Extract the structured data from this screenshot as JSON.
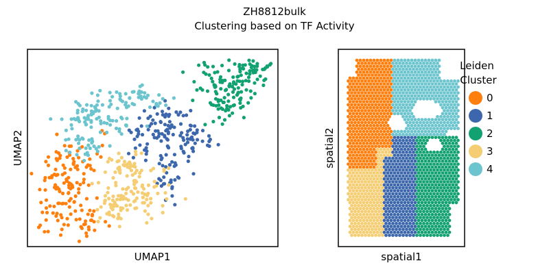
{
  "figure": {
    "suptitle": "ZH8812bulk",
    "title": "Clustering based on TF Activity"
  },
  "legend": {
    "title_line1": "Leiden",
    "title_line2": "Cluster",
    "placement": "right of spatial panel",
    "items": [
      {
        "label": "0",
        "color": "#ff7f0e"
      },
      {
        "label": "1",
        "color": "#3c67ad"
      },
      {
        "label": "2",
        "color": "#12a170"
      },
      {
        "label": "3",
        "color": "#f5cd72"
      },
      {
        "label": "4",
        "color": "#6cc5ce"
      }
    ]
  },
  "chart_data": [
    {
      "type": "scatter",
      "panel": "umap",
      "xlabel": "UMAP1",
      "ylabel": "UMAP2",
      "ticks": "none",
      "grid": false,
      "points_per_cluster_approx": 150,
      "clusters": [
        {
          "name": "0",
          "color": "#ff7f0e",
          "region": "lower-left lobe and left edge"
        },
        {
          "name": "1",
          "color": "#3c67ad",
          "region": "center diagonal band"
        },
        {
          "name": "2",
          "color": "#12a170",
          "region": "upper-right arm"
        },
        {
          "name": "3",
          "color": "#f5cd72",
          "region": "lower center blob"
        },
        {
          "name": "4",
          "color": "#6cc5ce",
          "region": "upper-left arm"
        }
      ]
    },
    {
      "type": "scatter",
      "panel": "spatial",
      "xlabel": "spatial1",
      "ylabel": "spatial2",
      "ticks": "none",
      "grid": false,
      "marker": "hexagonal spots",
      "clusters": [
        {
          "name": "0",
          "color": "#ff7f0e",
          "region": "upper-left region"
        },
        {
          "name": "1",
          "color": "#3c67ad",
          "region": "center vertical strip"
        },
        {
          "name": "2",
          "color": "#12a170",
          "region": "lower-right region"
        },
        {
          "name": "3",
          "color": "#f5cd72",
          "region": "lower-left region"
        },
        {
          "name": "4",
          "color": "#6cc5ce",
          "region": "upper-right arch"
        }
      ]
    }
  ]
}
